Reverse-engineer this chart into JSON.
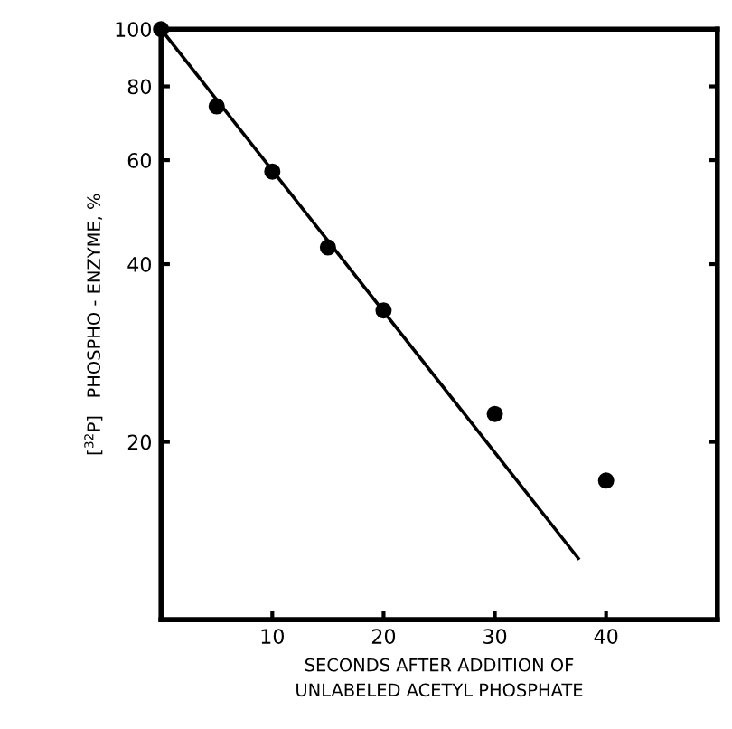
{
  "chart_data": {
    "type": "scatter",
    "xlabel": "SECONDS AFTER ADDITION OF\nUNLABELED ACETYL PHOSPHATE",
    "ylabel": "[$^{32}$P]   PHOSPHO - ENZYME, %",
    "log": "y",
    "xlim": [
      0,
      50
    ],
    "ylim": [
      10,
      100
    ],
    "xticks": [
      10,
      20,
      30,
      40
    ],
    "yticks": [
      20,
      40,
      60,
      80,
      100
    ],
    "grid": false,
    "legend": false,
    "series": [
      {
        "color": "#000000",
        "marker": "circle",
        "x": [
          0,
          5,
          10,
          15,
          20,
          30,
          40
        ],
        "values": [
          100,
          74,
          57.4,
          42.7,
          33.4,
          22.3,
          17.2
        ]
      },
      {
        "type": "line",
        "color": "#000000",
        "marker": "none",
        "line_style": "solid",
        "x": [
          0,
          37.5
        ],
        "values": [
          100,
          12.7
        ]
      }
    ]
  }
}
